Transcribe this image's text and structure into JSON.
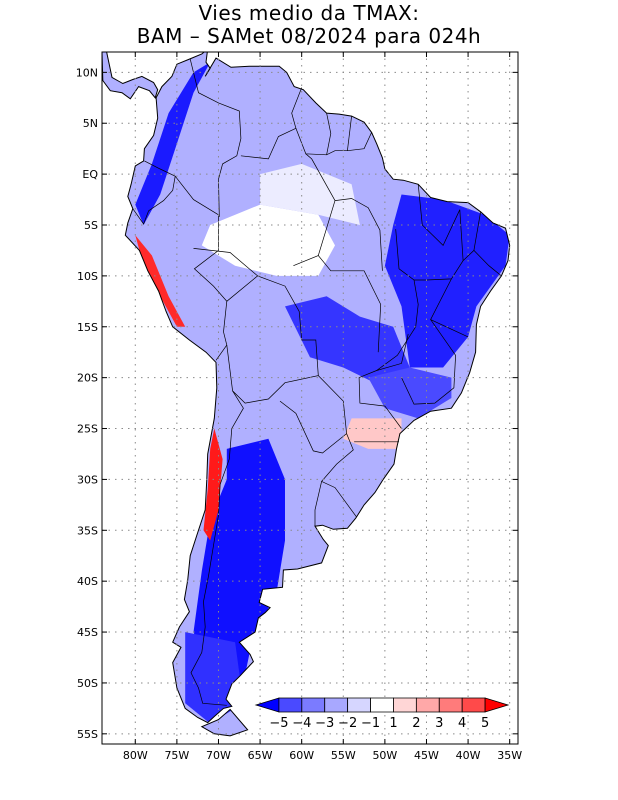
{
  "title": {
    "line1": "Vies medio da TMAX:",
    "line2": "BAM – SAMet 08/2024  para 024h"
  },
  "map": {
    "lon_range": [
      -84,
      -34
    ],
    "lat_range": [
      -56,
      12
    ],
    "lat_labels": [
      {
        "lat": 10,
        "text": "10N"
      },
      {
        "lat": 5,
        "text": "5N"
      },
      {
        "lat": 0,
        "text": "EQ"
      },
      {
        "lat": -5,
        "text": "5S"
      },
      {
        "lat": -10,
        "text": "10S"
      },
      {
        "lat": -15,
        "text": "15S"
      },
      {
        "lat": -20,
        "text": "20S"
      },
      {
        "lat": -25,
        "text": "25S"
      },
      {
        "lat": -30,
        "text": "30S"
      },
      {
        "lat": -35,
        "text": "35S"
      },
      {
        "lat": -40,
        "text": "40S"
      },
      {
        "lat": -45,
        "text": "45S"
      },
      {
        "lat": -50,
        "text": "50S"
      },
      {
        "lat": -55,
        "text": "55S"
      }
    ],
    "lon_labels": [
      {
        "lon": -80,
        "text": "80W"
      },
      {
        "lon": -75,
        "text": "75W"
      },
      {
        "lon": -70,
        "text": "70W"
      },
      {
        "lon": -65,
        "text": "65W"
      },
      {
        "lon": -60,
        "text": "60W"
      },
      {
        "lon": -55,
        "text": "55W"
      },
      {
        "lon": -50,
        "text": "50W"
      },
      {
        "lon": -45,
        "text": "45W"
      },
      {
        "lon": -40,
        "text": "40W"
      },
      {
        "lon": -35,
        "text": "35W"
      }
    ]
  },
  "colorbar": {
    "colors": [
      "#0000ff",
      "#4a4aff",
      "#7b7bff",
      "#a8a8ff",
      "#d6d6ff",
      "#ffffff",
      "#ffd6d6",
      "#ffa8a8",
      "#ff7b7b",
      "#ff4a4a",
      "#ff0000"
    ],
    "labels": [
      "−5",
      "−4",
      "−3",
      "−2",
      "−1",
      "1",
      "2",
      "3",
      "4",
      "5"
    ]
  },
  "regions": [
    {
      "name": "andes-north-negative-bias",
      "color": "#1a1aff",
      "lon_lat": [
        [
          -78,
          1
        ],
        [
          -76,
          6
        ],
        [
          -73,
          10
        ],
        [
          -71,
          11
        ],
        [
          -73,
          8
        ],
        [
          -75,
          3
        ],
        [
          -77,
          -2
        ],
        [
          -79,
          -5
        ],
        [
          -80,
          -3
        ]
      ]
    },
    {
      "name": "northeast-brazil-negative-bias",
      "color": "#2020ff",
      "lon_lat": [
        [
          -48,
          -2
        ],
        [
          -43,
          -2.5
        ],
        [
          -38,
          -4
        ],
        [
          -35,
          -6
        ],
        [
          -35.5,
          -9
        ],
        [
          -39,
          -13
        ],
        [
          -40,
          -16
        ],
        [
          -43,
          -19
        ],
        [
          -47,
          -19
        ],
        [
          -48,
          -13
        ],
        [
          -50,
          -9
        ],
        [
          -49,
          -5
        ]
      ]
    },
    {
      "name": "central-brazil-negative-bias",
      "color": "#3535ff",
      "lon_lat": [
        [
          -62,
          -13
        ],
        [
          -57,
          -12
        ],
        [
          -53,
          -14
        ],
        [
          -49,
          -15
        ],
        [
          -47,
          -19
        ],
        [
          -50,
          -21
        ],
        [
          -55,
          -19
        ],
        [
          -59,
          -18
        ]
      ]
    },
    {
      "name": "southeast-brazil-negative-bias",
      "color": "#4a4aff",
      "lon_lat": [
        [
          -52,
          -20
        ],
        [
          -47,
          -19
        ],
        [
          -42,
          -20
        ],
        [
          -42,
          -22
        ],
        [
          -46,
          -24
        ],
        [
          -50,
          -23
        ]
      ]
    },
    {
      "name": "argentina-negative-bias",
      "color": "#1010ff",
      "lon_lat": [
        [
          -69,
          -27
        ],
        [
          -64,
          -26
        ],
        [
          -62,
          -30
        ],
        [
          -62,
          -36
        ],
        [
          -63,
          -41
        ],
        [
          -66,
          -46
        ],
        [
          -67,
          -50
        ],
        [
          -71,
          -49
        ],
        [
          -73,
          -45
        ],
        [
          -72,
          -39
        ],
        [
          -71,
          -34
        ],
        [
          -69,
          -30
        ]
      ]
    },
    {
      "name": "patagonia-negative-bias",
      "color": "#3030ff",
      "lon_lat": [
        [
          -74,
          -45
        ],
        [
          -68,
          -46
        ],
        [
          -67,
          -52
        ],
        [
          -71,
          -54
        ],
        [
          -74,
          -52
        ]
      ]
    },
    {
      "name": "peru-andes-positive-bias",
      "color": "#ff2a2a",
      "lon_lat": [
        [
          -80,
          -6
        ],
        [
          -78,
          -8
        ],
        [
          -76,
          -12
        ],
        [
          -74,
          -15
        ],
        [
          -75,
          -15
        ],
        [
          -77,
          -12
        ],
        [
          -79,
          -9
        ]
      ]
    },
    {
      "name": "chile-andes-positive-bias",
      "color": "#ff1a1a",
      "lon_lat": [
        [
          -70.5,
          -25
        ],
        [
          -69.5,
          -28
        ],
        [
          -70,
          -33
        ],
        [
          -71,
          -36
        ],
        [
          -71.8,
          -35
        ],
        [
          -71.3,
          -31
        ],
        [
          -71,
          -27
        ]
      ]
    },
    {
      "name": "south-brazil-positive-bias",
      "color": "#ffc8c8",
      "lon_lat": [
        [
          -54,
          -24
        ],
        [
          -48,
          -24
        ],
        [
          -48,
          -27
        ],
        [
          -52,
          -27
        ],
        [
          -55,
          -26
        ]
      ]
    },
    {
      "name": "amazon-neutral",
      "color": "#ffffff",
      "lon_lat": [
        [
          -71,
          -5
        ],
        [
          -65,
          -3
        ],
        [
          -58,
          -4
        ],
        [
          -56,
          -7
        ],
        [
          -58,
          -10
        ],
        [
          -63,
          -10
        ],
        [
          -68,
          -9
        ],
        [
          -72,
          -7
        ]
      ]
    },
    {
      "name": "amazon-weak-negative",
      "color": "#ececff",
      "lon_lat": [
        [
          -65,
          0
        ],
        [
          -60,
          1
        ],
        [
          -54,
          -1
        ],
        [
          -53,
          -5
        ],
        [
          -58,
          -4
        ],
        [
          -65,
          -3
        ]
      ]
    }
  ]
}
